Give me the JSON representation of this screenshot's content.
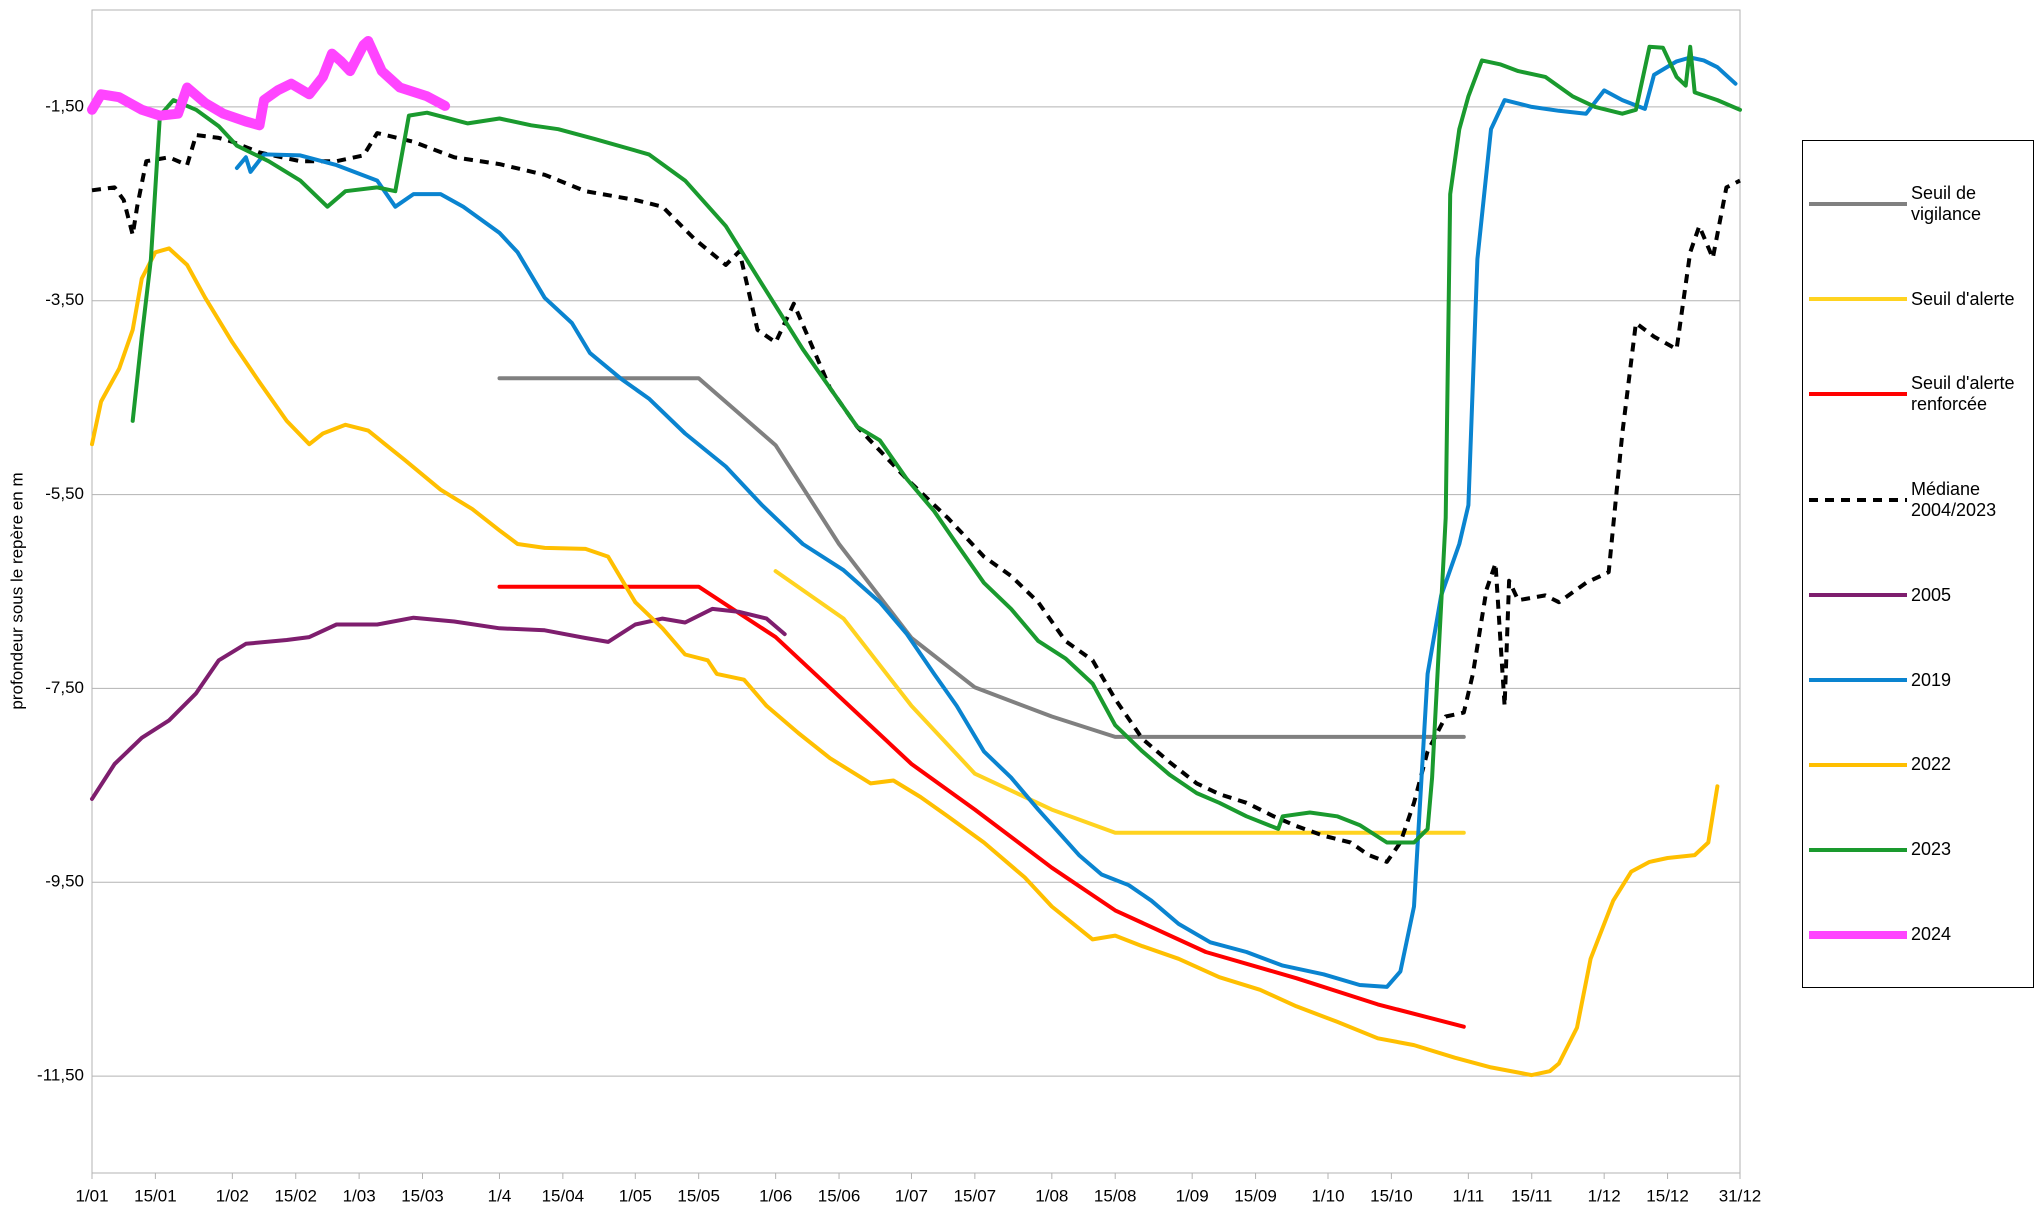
{
  "chart_data": {
    "type": "line",
    "y_label": "profondeur sous le repère en m",
    "ylim": [
      -12.5,
      -0.5
    ],
    "yticks": [
      {
        "value": -1.5,
        "label": "-1,50"
      },
      {
        "value": -3.5,
        "label": "-3,50"
      },
      {
        "value": -5.5,
        "label": "-5,50"
      },
      {
        "value": -7.5,
        "label": "-7,50"
      },
      {
        "value": -9.5,
        "label": "-9,50"
      },
      {
        "value": -11.5,
        "label": "-11,50"
      }
    ],
    "xlim": [
      1,
      365
    ],
    "xticks": [
      {
        "value": 1,
        "label": "1/01"
      },
      {
        "value": 15,
        "label": "15/01"
      },
      {
        "value": 32,
        "label": "1/02"
      },
      {
        "value": 46,
        "label": "15/02"
      },
      {
        "value": 60,
        "label": "1/03"
      },
      {
        "value": 74,
        "label": "15/03"
      },
      {
        "value": 91,
        "label": "1/4"
      },
      {
        "value": 105,
        "label": "15/04"
      },
      {
        "value": 121,
        "label": "1/05"
      },
      {
        "value": 135,
        "label": "15/05"
      },
      {
        "value": 152,
        "label": "1/06"
      },
      {
        "value": 166,
        "label": "15/06"
      },
      {
        "value": 182,
        "label": "1/07"
      },
      {
        "value": 196,
        "label": "15/07"
      },
      {
        "value": 213,
        "label": "1/08"
      },
      {
        "value": 227,
        "label": "15/08"
      },
      {
        "value": 244,
        "label": "1/09"
      },
      {
        "value": 258,
        "label": "15/09"
      },
      {
        "value": 274,
        "label": "1/10"
      },
      {
        "value": 288,
        "label": "15/10"
      },
      {
        "value": 305,
        "label": "1/11"
      },
      {
        "value": 319,
        "label": "15/11"
      },
      {
        "value": 335,
        "label": "1/12"
      },
      {
        "value": 349,
        "label": "15/12"
      },
      {
        "value": 365,
        "label": "31/12"
      }
    ],
    "grid": true,
    "legend": "right",
    "series": [
      {
        "name": "Seuil de vigilance",
        "color": "#808080",
        "width": 4,
        "dashed": false,
        "x": [
          91,
          135,
          152,
          166,
          182,
          196,
          213,
          227,
          304
        ],
        "values": [
          -4.3,
          -4.3,
          -4.99,
          -6.01,
          -6.98,
          -7.49,
          -7.79,
          -8.0,
          -8.0
        ]
      },
      {
        "name": "Seuil d'alerte",
        "color": "#ffd320",
        "width": 4,
        "dashed": false,
        "x": [
          152,
          167,
          182,
          196,
          213,
          227,
          304
        ],
        "values": [
          -6.29,
          -6.78,
          -7.68,
          -8.38,
          -8.75,
          -8.99,
          -8.99
        ]
      },
      {
        "name": "Seuil d'alerte renforcée",
        "color": "#ff0000",
        "width": 4,
        "dashed": false,
        "x": [
          91,
          135,
          152,
          182,
          196,
          213,
          227,
          247,
          267,
          285,
          304
        ],
        "values": [
          -6.45,
          -6.45,
          -6.97,
          -8.28,
          -8.75,
          -9.35,
          -9.79,
          -10.22,
          -10.49,
          -10.76,
          -10.99
        ]
      },
      {
        "name": "Médiane 2004/2023",
        "color": "#000000",
        "width": 4,
        "dashed": true,
        "x": [
          1,
          6,
          8,
          10,
          11,
          13,
          18,
          22,
          24,
          29,
          32,
          38,
          47,
          55,
          61,
          64,
          72,
          81,
          91,
          101,
          110,
          121,
          127,
          134,
          141,
          144,
          148,
          152,
          156,
          164,
          170,
          181,
          190,
          198,
          204,
          210,
          216,
          222,
          227,
          233,
          239,
          245,
          250,
          256,
          262,
          267,
          273,
          279,
          283,
          287,
          290,
          293,
          296,
          300,
          304,
          306,
          309,
          311,
          313,
          314,
          316,
          322,
          325,
          331,
          336,
          339,
          342,
          346,
          351,
          354,
          356,
          359,
          362,
          365
        ],
        "values": [
          -2.36,
          -2.33,
          -2.46,
          -2.82,
          -2.52,
          -2.06,
          -2.02,
          -2.1,
          -1.79,
          -1.82,
          -1.86,
          -1.97,
          -2.06,
          -2.06,
          -2.0,
          -1.77,
          -1.86,
          -2.02,
          -2.09,
          -2.2,
          -2.37,
          -2.46,
          -2.53,
          -2.86,
          -3.13,
          -2.99,
          -3.8,
          -3.93,
          -3.53,
          -4.4,
          -4.8,
          -5.34,
          -5.74,
          -6.14,
          -6.34,
          -6.61,
          -7.01,
          -7.21,
          -7.61,
          -8.02,
          -8.26,
          -8.48,
          -8.59,
          -8.68,
          -8.82,
          -8.92,
          -9.02,
          -9.09,
          -9.22,
          -9.29,
          -9.09,
          -8.68,
          -8.15,
          -7.79,
          -7.75,
          -7.35,
          -6.48,
          -6.21,
          -7.68,
          -6.39,
          -6.59,
          -6.54,
          -6.61,
          -6.41,
          -6.3,
          -4.87,
          -3.73,
          -3.87,
          -4.0,
          -3.0,
          -2.73,
          -3.06,
          -2.33,
          -2.26
        ]
      },
      {
        "name": "2005",
        "color": "#7e1e6e",
        "width": 4,
        "dashed": false,
        "x": [
          1,
          6,
          12,
          18,
          24,
          29,
          35,
          44,
          49,
          55,
          64,
          72,
          81,
          91,
          101,
          110,
          115,
          121,
          127,
          132,
          138,
          144,
          150,
          154
        ],
        "values": [
          -8.64,
          -8.28,
          -8.01,
          -7.83,
          -7.55,
          -7.21,
          -7.04,
          -7.0,
          -6.97,
          -6.84,
          -6.84,
          -6.77,
          -6.81,
          -6.88,
          -6.9,
          -6.98,
          -7.02,
          -6.84,
          -6.78,
          -6.82,
          -6.68,
          -6.71,
          -6.78,
          -6.94
        ]
      },
      {
        "name": "2019",
        "color": "#0a84d0",
        "width": 4,
        "dashed": false,
        "x": [
          33,
          35,
          36,
          39,
          47,
          55,
          64,
          68,
          72,
          78,
          83,
          91,
          95,
          101,
          107,
          111,
          118,
          124,
          132,
          141,
          149,
          158,
          167,
          175,
          181,
          187,
          192,
          198,
          204,
          210,
          219,
          224,
          230,
          235,
          241,
          248,
          256,
          264,
          273,
          281,
          287,
          290,
          293,
          296,
          299,
          303,
          305,
          307,
          310,
          313,
          319,
          325,
          331,
          335,
          339,
          344,
          346,
          351,
          354,
          357,
          360,
          364
        ],
        "values": [
          -2.13,
          -2.02,
          -2.17,
          -1.99,
          -2.0,
          -2.1,
          -2.26,
          -2.53,
          -2.4,
          -2.4,
          -2.53,
          -2.8,
          -3.0,
          -3.47,
          -3.73,
          -4.04,
          -4.31,
          -4.51,
          -4.87,
          -5.21,
          -5.61,
          -6.01,
          -6.28,
          -6.61,
          -6.94,
          -7.35,
          -7.68,
          -8.15,
          -8.42,
          -8.75,
          -9.22,
          -9.42,
          -9.53,
          -9.69,
          -9.93,
          -10.12,
          -10.22,
          -10.36,
          -10.45,
          -10.56,
          -10.58,
          -10.42,
          -9.75,
          -7.35,
          -6.54,
          -6.01,
          -5.61,
          -3.07,
          -1.73,
          -1.43,
          -1.5,
          -1.54,
          -1.57,
          -1.33,
          -1.43,
          -1.52,
          -1.17,
          -1.03,
          -0.99,
          -1.02,
          -1.09,
          -1.26
        ]
      },
      {
        "name": "2022",
        "color": "#ffbf00",
        "width": 4,
        "dashed": false,
        "x": [
          1,
          3,
          7,
          10,
          12,
          15,
          18,
          22,
          26,
          32,
          38,
          44,
          49,
          52,
          57,
          62,
          70,
          78,
          85,
          91,
          95,
          101,
          110,
          115,
          121,
          127,
          132,
          137,
          139,
          145,
          150,
          157,
          164,
          173,
          178,
          184,
          190,
          198,
          207,
          213,
          222,
          227,
          233,
          241,
          250,
          259,
          267,
          276,
          285,
          293,
          302,
          310,
          319,
          323,
          325,
          329,
          332,
          337,
          341,
          345,
          349,
          355,
          358,
          360
        ],
        "values": [
          -4.98,
          -4.54,
          -4.2,
          -3.8,
          -3.27,
          -3.0,
          -2.96,
          -3.13,
          -3.47,
          -3.93,
          -4.34,
          -4.74,
          -4.98,
          -4.87,
          -4.78,
          -4.84,
          -5.14,
          -5.45,
          -5.65,
          -5.87,
          -6.01,
          -6.05,
          -6.06,
          -6.14,
          -6.61,
          -6.88,
          -7.15,
          -7.21,
          -7.35,
          -7.41,
          -7.68,
          -7.96,
          -8.22,
          -8.48,
          -8.45,
          -8.62,
          -8.82,
          -9.09,
          -9.45,
          -9.75,
          -10.09,
          -10.05,
          -10.16,
          -10.29,
          -10.48,
          -10.61,
          -10.78,
          -10.94,
          -11.11,
          -11.18,
          -11.31,
          -11.41,
          -11.49,
          -11.45,
          -11.37,
          -11.0,
          -10.29,
          -9.69,
          -9.39,
          -9.29,
          -9.25,
          -9.22,
          -9.09,
          -8.51
        ]
      },
      {
        "name": "2023",
        "color": "#1a9a2e",
        "width": 4,
        "dashed": false,
        "x": [
          10,
          12,
          14,
          16,
          19,
          24,
          29,
          33,
          40,
          47,
          53,
          57,
          64,
          68,
          71,
          75,
          84,
          91,
          98,
          104,
          112,
          124,
          132,
          141,
          149,
          158,
          164,
          170,
          175,
          181,
          187,
          192,
          198,
          204,
          210,
          216,
          222,
          227,
          233,
          239,
          245,
          250,
          256,
          263,
          264,
          270,
          276,
          281,
          287,
          293,
          296,
          297,
          300,
          301,
          303,
          305,
          308,
          312,
          316,
          322,
          328,
          333,
          339,
          342,
          345,
          348,
          351,
          353,
          354,
          355,
          360,
          365
        ],
        "values": [
          -4.74,
          -3.87,
          -3.07,
          -1.59,
          -1.43,
          -1.53,
          -1.7,
          -1.9,
          -2.06,
          -2.26,
          -2.53,
          -2.37,
          -2.33,
          -2.37,
          -1.59,
          -1.56,
          -1.67,
          -1.62,
          -1.69,
          -1.73,
          -1.83,
          -1.99,
          -2.26,
          -2.73,
          -3.33,
          -4.0,
          -4.4,
          -4.8,
          -4.94,
          -5.34,
          -5.67,
          -6.01,
          -6.41,
          -6.68,
          -7.01,
          -7.19,
          -7.45,
          -7.88,
          -8.15,
          -8.39,
          -8.58,
          -8.68,
          -8.82,
          -8.95,
          -8.82,
          -8.78,
          -8.82,
          -8.91,
          -9.09,
          -9.09,
          -8.95,
          -8.42,
          -5.74,
          -2.4,
          -1.73,
          -1.39,
          -1.02,
          -1.06,
          -1.13,
          -1.19,
          -1.39,
          -1.5,
          -1.57,
          -1.53,
          -0.88,
          -0.89,
          -1.19,
          -1.28,
          -0.88,
          -1.35,
          -1.43,
          -1.53
        ]
      },
      {
        "name": "2024",
        "color": "#ff44ff",
        "width": 10,
        "dashed": false,
        "x": [
          1,
          3,
          7,
          12,
          16,
          20,
          22,
          26,
          30,
          35,
          38,
          39,
          42,
          45,
          49,
          52,
          54,
          56,
          58,
          61,
          62,
          65,
          69,
          75,
          79
        ],
        "values": [
          -1.53,
          -1.37,
          -1.4,
          -1.53,
          -1.59,
          -1.57,
          -1.3,
          -1.46,
          -1.57,
          -1.65,
          -1.69,
          -1.43,
          -1.33,
          -1.26,
          -1.37,
          -1.19,
          -0.95,
          -1.03,
          -1.13,
          -0.86,
          -0.82,
          -1.13,
          -1.3,
          -1.39,
          -1.49
        ]
      }
    ]
  }
}
